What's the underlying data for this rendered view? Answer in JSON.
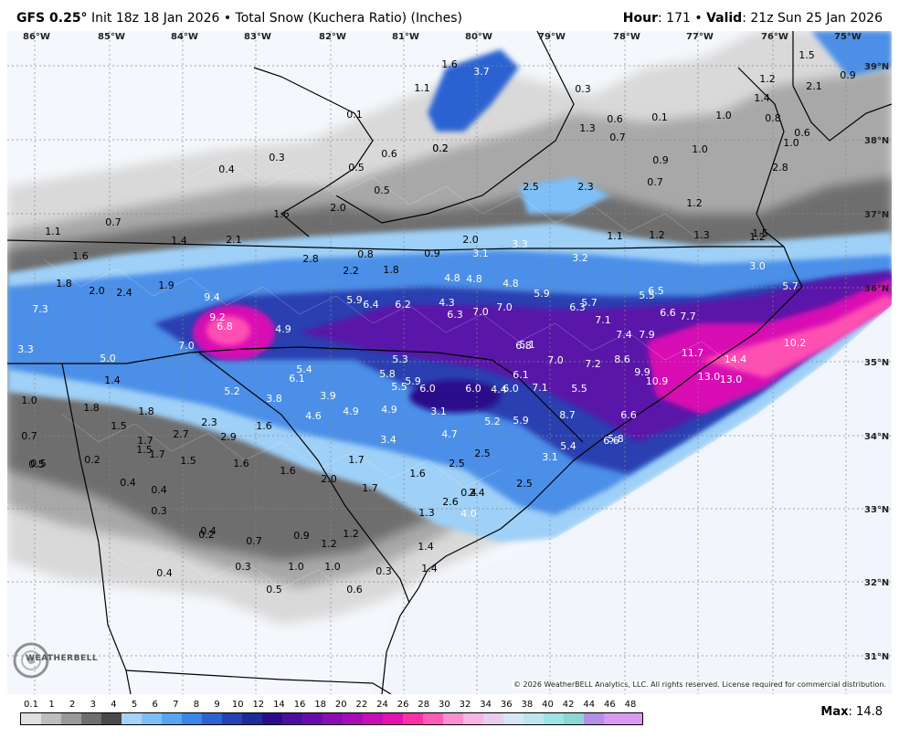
{
  "header": {
    "model": "GFS 0.25°",
    "description": "Init 18z 18 Jan 2026 • Total Snow (Kuchera Ratio) (Inches)",
    "hour_label": "Hour",
    "hour": "171",
    "valid_label": "Valid",
    "valid": "21z Sun 25 Jan 2026"
  },
  "longitudes": [
    "86°W",
    "85°W",
    "84°W",
    "83°W",
    "82°W",
    "81°W",
    "80°W",
    "79°W",
    "78°W",
    "77°W",
    "76°W",
    "75°W"
  ],
  "latitudes": [
    "39°N",
    "38°N",
    "37°N",
    "36°N",
    "35°N",
    "34°N",
    "33°N",
    "32°N",
    "31°N"
  ],
  "snow_labels": [
    "0.1",
    "0.4",
    "0.3",
    "0.5",
    "0.6",
    "0.2",
    "0.5",
    "0.7",
    "1.1",
    "1.6",
    "2.0",
    "2.1",
    "1.4",
    "1.6",
    "1.8",
    "2.0",
    "2.4",
    "1.9",
    "2.8",
    "2.2",
    "1.8",
    "0.8",
    "0.9",
    "2.0",
    "3.1",
    "3.3",
    "3.2",
    "2.5",
    "2.3",
    "3.7",
    "1.6",
    "1.1",
    "0.2",
    "0.3",
    "1.3",
    "0.6",
    "0.7",
    "0.1",
    "0.9",
    "0.7",
    "1.0",
    "1.0",
    "0.6",
    "1.2",
    "1.1",
    "1.2",
    "1.3",
    "1.2",
    "1.5",
    "1.5",
    "2.1",
    "0.9",
    "1.2",
    "1.4",
    "0.8",
    "1.0",
    "2.8",
    "7.3",
    "9.4",
    "9.2",
    "6.8",
    "7.0",
    "4.9",
    "3.3",
    "5.0",
    "5.9",
    "6.4",
    "6.2",
    "4.3",
    "4.8",
    "4.8",
    "4.8",
    "5.9",
    "5.7",
    "5.5",
    "6.5",
    "7.0",
    "7.0",
    "6.3",
    "6.8",
    "7.1",
    "7.4",
    "7.9",
    "6.6",
    "7.7",
    "11.7",
    "10.2",
    "5.7",
    "3.0",
    "14.4",
    "13.0",
    "13.0",
    "9.9",
    "10.9",
    "8.6",
    "7.2",
    "7.0",
    "6.6",
    "6.3",
    "5.1",
    "5.3",
    "5.8",
    "5.5",
    "5.4",
    "6.1",
    "5.9",
    "6.0",
    "6.0",
    "6.0",
    "6.1",
    "7.1",
    "5.5",
    "4.4",
    "3.8",
    "5.2",
    "3.9",
    "4.6",
    "4.9",
    "4.9",
    "3.1",
    "3.4",
    "4.7",
    "5.2",
    "5.9",
    "8.7",
    "6.6",
    "5.8",
    "5.4",
    "3.1",
    "2.5",
    "2.5",
    "2.4",
    "2.6",
    "4.0",
    "2.5",
    "0.4",
    "1.0",
    "1.8",
    "1.4",
    "1.8",
    "1.5",
    "1.7",
    "1.7",
    "1.5",
    "2.7",
    "2.3",
    "2.9",
    "1.6",
    "1.6",
    "1.6",
    "1.5",
    "2.0",
    "1.7",
    "1.6",
    "1.7",
    "1.3",
    "1.2",
    "1.2",
    "0.9",
    "0.7",
    "1.0",
    "1.0",
    "0.3",
    "0.6",
    "0.5",
    "0.3",
    "0.4",
    "0.4",
    "0.2",
    "0.4",
    "0.4",
    "0.3",
    "0.7",
    "0.5",
    "0.5",
    "0.2",
    "1.4",
    "1.4"
  ],
  "copyright": "© 2026 WeatherBELL Analytics, LLC. All rights reserved. License required for commercial distribution.",
  "logo_text": "WEATHERBELL",
  "legend": {
    "ticks": [
      "0.1",
      "1",
      "2",
      "3",
      "4",
      "5",
      "6",
      "7",
      "8",
      "9",
      "10",
      "12",
      "14",
      "16",
      "18",
      "20",
      "22",
      "24",
      "26",
      "28",
      "30",
      "32",
      "34",
      "36",
      "38",
      "40",
      "42",
      "44",
      "46",
      "48"
    ],
    "colors": [
      "#e0e0e0",
      "#bdbdbd",
      "#9a9a9a",
      "#6f6f6f",
      "#4a4a4a",
      "#a6d3f7",
      "#7fbff7",
      "#5aa5f2",
      "#3b86e6",
      "#2b63d1",
      "#2342b5",
      "#1e2a9a",
      "#2a0d8a",
      "#4b0fa0",
      "#6a0cab",
      "#8a0cb5",
      "#a80cb8",
      "#c80cb6",
      "#e510b0",
      "#ff2fa8",
      "#ff5cb8",
      "#ff8fd0",
      "#f6b6e4",
      "#e8cdee",
      "#d6e6f5",
      "#bde6ee",
      "#9ee3e6",
      "#8ed6d4",
      "#b38fe8",
      "#d89af0"
    ],
    "color_widths": [
      22,
      22,
      22,
      22,
      22,
      22,
      22,
      22,
      22,
      22,
      22,
      22,
      22,
      22,
      22,
      22,
      22,
      22,
      22,
      22,
      22,
      22,
      22,
      22,
      22,
      22,
      22,
      22,
      22,
      42
    ]
  },
  "max": {
    "label": "Max",
    "value": "14.8"
  }
}
